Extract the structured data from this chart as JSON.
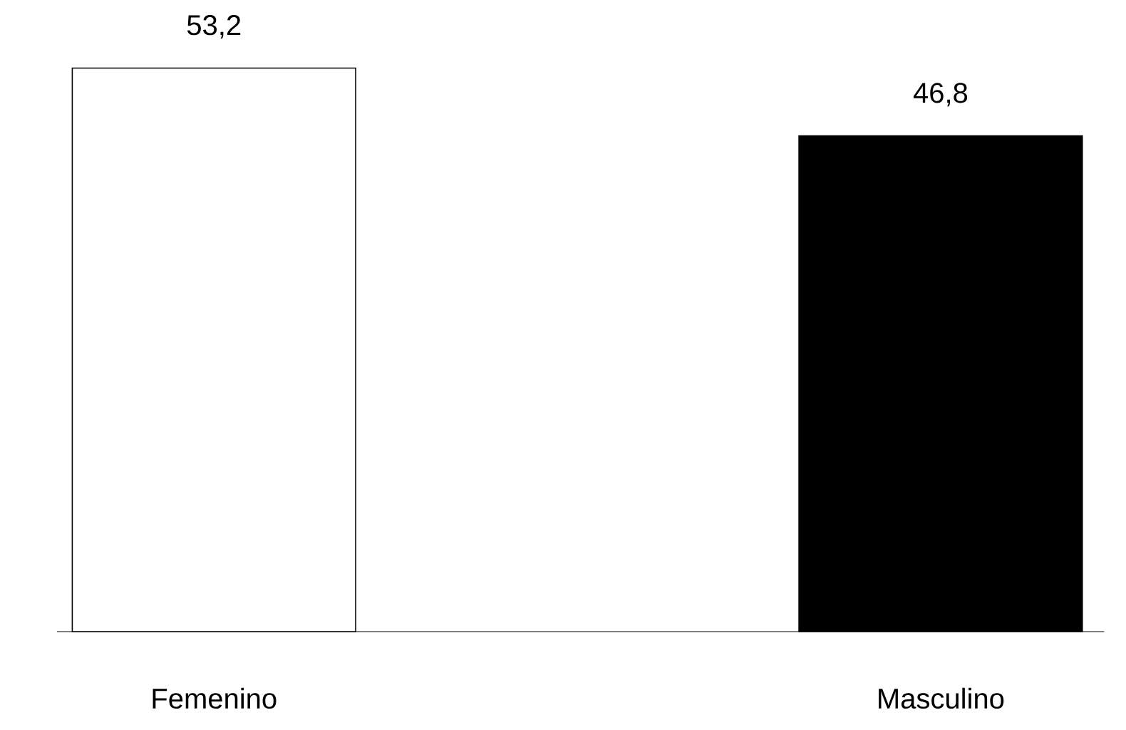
{
  "chart_data": {
    "type": "bar",
    "categories": [
      "Femenino",
      "Masculino"
    ],
    "values": [
      53.2,
      46.8
    ],
    "value_labels": [
      "53,2",
      "46,8"
    ],
    "colors": [
      "#ffffff",
      "#000000"
    ]
  }
}
